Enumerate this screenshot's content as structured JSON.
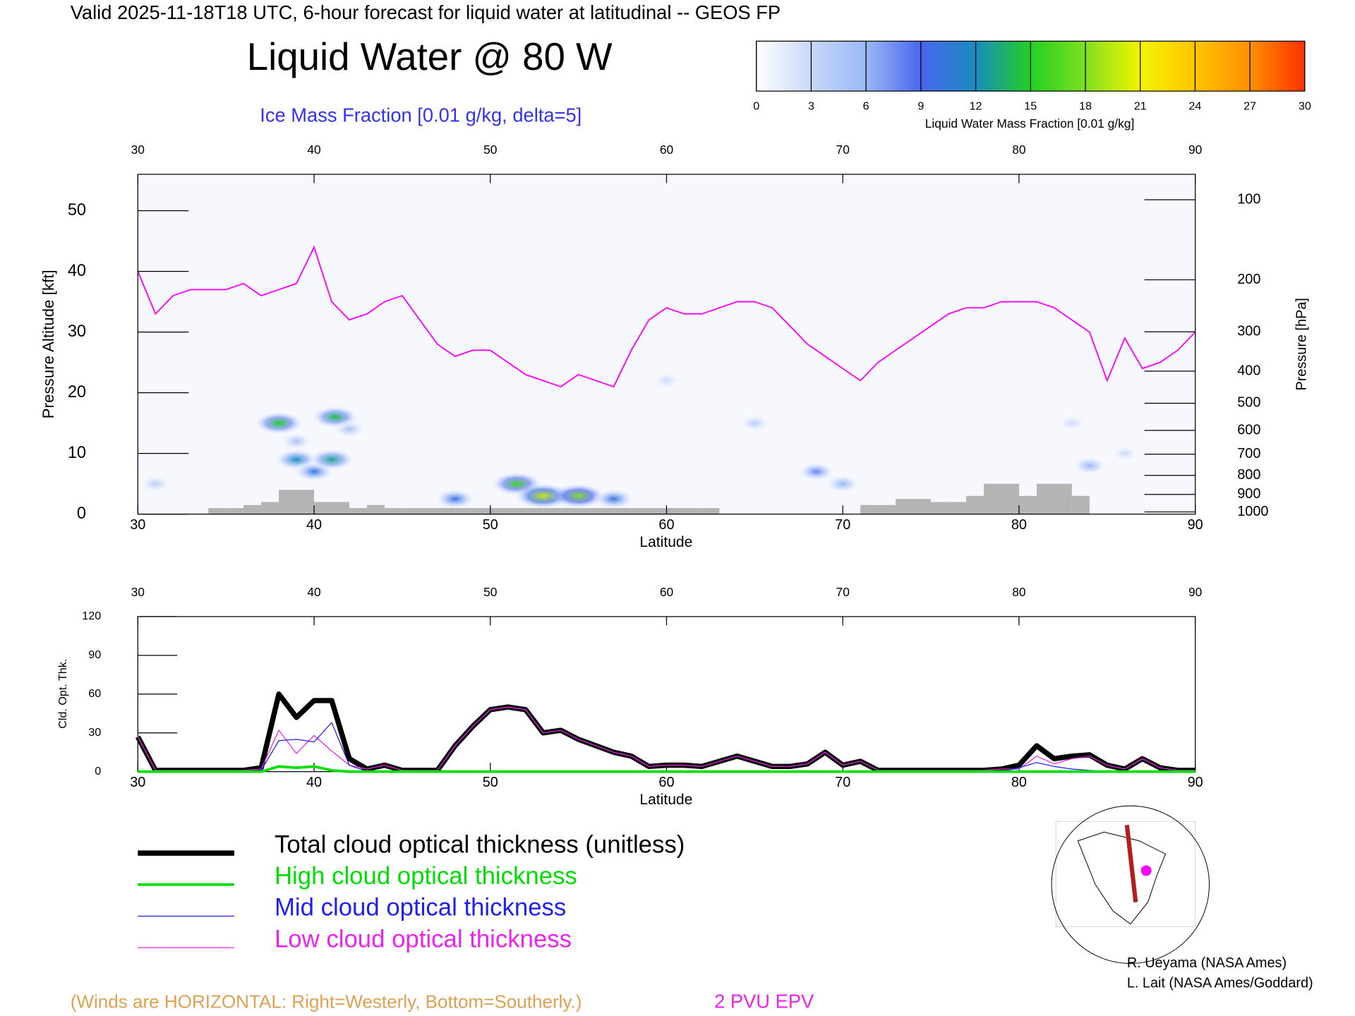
{
  "header": "Valid 2025-11-18T18 UTC, 6-hour forecast for liquid water at latitudinal -- GEOS FP",
  "colorbar": {
    "label": "Liquid Water Mass Fraction [0.01 g/kg]",
    "lim": [
      0,
      30
    ],
    "ticks": [
      0,
      3,
      6,
      9,
      12,
      15,
      18,
      21,
      24,
      27,
      30
    ],
    "colors": [
      "#ffffff",
      "#c8d8fa",
      "#9ab8f6",
      "#4a66ee",
      "#1a8cc0",
      "#22d022",
      "#7fe020",
      "#f4f400",
      "#ffc400",
      "#ff9000",
      "#ff3000"
    ]
  },
  "chart_data": [
    {
      "type": "cross-section",
      "title": "Liquid Water @ 80 W",
      "subtitle": "Ice Mass Fraction [0.01 g/kg, delta=5]",
      "xlabel": "Latitude",
      "ylabel": "Pressure Altitude [kft]",
      "y2label": "Pressure [hPa]",
      "xlim": [
        30,
        90
      ],
      "xticks": [
        30,
        40,
        50,
        60,
        70,
        80,
        90
      ],
      "ylim": [
        0,
        56
      ],
      "yticks": [
        0,
        10,
        20,
        30,
        40,
        50
      ],
      "y2scale": "pressure-altitude",
      "y2ticks": [
        100,
        200,
        300,
        400,
        500,
        600,
        700,
        800,
        900,
        1000
      ],
      "series": [
        {
          "name": "2 PVU EPV",
          "color": "#ff00ff",
          "x": [
            30,
            31,
            32,
            33,
            34,
            35,
            36,
            37,
            38,
            39,
            40,
            41,
            42,
            43,
            44,
            45,
            46,
            47,
            48,
            49,
            50,
            51,
            52,
            53,
            54,
            55,
            56,
            57,
            58,
            59,
            60,
            61,
            62,
            63,
            64,
            65,
            66,
            67,
            68,
            69,
            70,
            71,
            72,
            73,
            74,
            75,
            76,
            77,
            78,
            79,
            80,
            81,
            82,
            83,
            84,
            85,
            86,
            87,
            88,
            89,
            90
          ],
          "values": [
            40,
            33,
            36,
            37,
            37,
            37,
            38,
            36,
            37,
            38,
            44,
            35,
            32,
            33,
            35,
            36,
            32,
            28,
            26,
            27,
            27,
            25,
            23,
            22,
            21,
            23,
            22,
            21,
            27,
            32,
            34,
            33,
            33,
            34,
            35,
            35,
            34,
            31,
            28,
            26,
            24,
            22,
            25,
            27,
            29,
            31,
            33,
            34,
            34,
            35,
            35,
            35,
            34,
            32,
            30,
            22,
            29,
            24,
            25,
            27,
            30
          ]
        }
      ],
      "terrain": {
        "color": "#b4b4b4",
        "x": [
          30,
          31,
          32,
          33,
          34,
          35,
          36,
          37,
          38,
          39,
          40,
          41,
          42,
          43,
          44,
          45,
          46,
          47,
          48,
          49,
          50,
          51,
          52,
          53,
          54,
          55,
          56,
          57,
          58,
          59,
          60,
          61,
          62,
          63,
          64,
          65,
          66,
          67,
          68,
          69,
          70,
          71,
          72,
          73,
          74,
          75,
          76,
          77,
          78,
          79,
          80,
          81,
          82,
          83,
          84,
          85,
          86,
          87,
          88,
          89
        ],
        "values": [
          0,
          0,
          0,
          0,
          1,
          1,
          1.5,
          2,
          4,
          4,
          2,
          2,
          1,
          1.5,
          1,
          1,
          1,
          1,
          1,
          1,
          1,
          1,
          1,
          1,
          1,
          1,
          1,
          1,
          1,
          1,
          1,
          1,
          1,
          0,
          0,
          0,
          0,
          0,
          0,
          0,
          0,
          1.5,
          1.5,
          2.5,
          2.5,
          2,
          2,
          3,
          5,
          5,
          3,
          5,
          5,
          3,
          0,
          0,
          0,
          0,
          0,
          0
        ]
      },
      "liquid_water": {
        "lat": [
          38,
          39,
          40,
          41,
          41.2,
          39,
          51.5,
          53,
          55,
          57,
          48,
          42,
          65,
          60,
          68.5,
          70,
          83,
          84,
          31,
          86
        ],
        "kft": [
          15,
          9,
          7,
          9,
          16,
          12,
          5,
          3,
          3,
          2.5,
          2.5,
          14,
          15,
          22,
          7,
          5,
          15,
          8,
          5,
          10
        ],
        "values": [
          15,
          12,
          10,
          13,
          14,
          5,
          16,
          20,
          18,
          10,
          10,
          5,
          4,
          3,
          8,
          6,
          3,
          6,
          4,
          3
        ]
      }
    },
    {
      "type": "line",
      "xlabel": "Latitude",
      "ylabel": "Cld. Opt. Thk.",
      "xlim": [
        30,
        90
      ],
      "xticks": [
        30,
        40,
        50,
        60,
        70,
        80,
        90
      ],
      "ylim": [
        0,
        120
      ],
      "yticks": [
        0,
        30,
        60,
        90,
        120
      ],
      "x": [
        30,
        31,
        32,
        33,
        34,
        35,
        36,
        37,
        38,
        39,
        40,
        41,
        42,
        43,
        44,
        45,
        46,
        47,
        48,
        49,
        50,
        51,
        52,
        53,
        54,
        55,
        56,
        57,
        58,
        59,
        60,
        61,
        62,
        63,
        64,
        65,
        66,
        67,
        68,
        69,
        70,
        71,
        72,
        73,
        74,
        75,
        76,
        77,
        78,
        79,
        80,
        81,
        82,
        83,
        84,
        85,
        86,
        87,
        88,
        89,
        90
      ],
      "series": [
        {
          "name": "Total cloud optical thickness (unitless)",
          "color": "#000000",
          "width": 6,
          "values": [
            27,
            1,
            1,
            1,
            1,
            1,
            1,
            3,
            60,
            42,
            55,
            55,
            10,
            2,
            5,
            1,
            1,
            1,
            20,
            35,
            48,
            50,
            48,
            30,
            32,
            25,
            20,
            15,
            12,
            4,
            5,
            5,
            4,
            8,
            12,
            8,
            4,
            4,
            6,
            15,
            5,
            8,
            1,
            1,
            1,
            1,
            1,
            1,
            1,
            2,
            5,
            20,
            10,
            12,
            13,
            5,
            2,
            10,
            3,
            1,
            1
          ]
        },
        {
          "name": "High cloud optical thickness",
          "color": "#00dd00",
          "width": 3,
          "values": [
            0,
            0,
            0,
            0,
            0,
            0,
            0,
            0,
            4,
            3,
            4,
            1,
            0,
            0,
            0,
            0,
            0,
            0,
            0,
            0,
            0,
            0,
            0,
            0,
            0,
            0,
            0,
            0,
            0,
            0,
            0,
            0,
            0,
            0,
            0,
            0,
            0,
            0,
            0,
            0,
            0,
            0,
            0,
            0,
            0,
            0,
            0,
            0,
            0,
            0,
            0,
            0,
            0,
            0,
            0,
            0,
            0,
            0,
            0,
            0,
            0
          ]
        },
        {
          "name": "Mid cloud optical thickness",
          "color": "#2020ee",
          "width": 1,
          "values": [
            0,
            0,
            0,
            0,
            0,
            0,
            0,
            1,
            24,
            25,
            23,
            38,
            5,
            0,
            0,
            0,
            0,
            0,
            0,
            0,
            0,
            0,
            0,
            0,
            0,
            0,
            0,
            0,
            0,
            0,
            0,
            0,
            0,
            0,
            0,
            0,
            0,
            0,
            0,
            0,
            0,
            0,
            0,
            0,
            0,
            0,
            0,
            0,
            0,
            0,
            3,
            7,
            4,
            2,
            1,
            0,
            0,
            0,
            0,
            0,
            0
          ]
        },
        {
          "name": "Low cloud optical thickness",
          "color": "#ee22ee",
          "width": 1,
          "values": [
            27,
            1,
            1,
            1,
            1,
            1,
            1,
            2,
            32,
            14,
            28,
            16,
            5,
            2,
            5,
            1,
            1,
            1,
            20,
            35,
            48,
            50,
            48,
            30,
            32,
            25,
            20,
            15,
            12,
            4,
            5,
            5,
            4,
            8,
            12,
            8,
            4,
            4,
            6,
            15,
            5,
            8,
            1,
            1,
            1,
            1,
            1,
            1,
            1,
            2,
            2,
            12,
            6,
            10,
            12,
            5,
            2,
            10,
            3,
            1,
            1
          ]
        }
      ]
    }
  ],
  "credits": [
    "R. Ueyama (NASA Ames)",
    "L. Lait (NASA Ames/Goddard)"
  ],
  "note": "(Winds are HORIZONTAL: Right=Westerly, Bottom=Southerly.)"
}
